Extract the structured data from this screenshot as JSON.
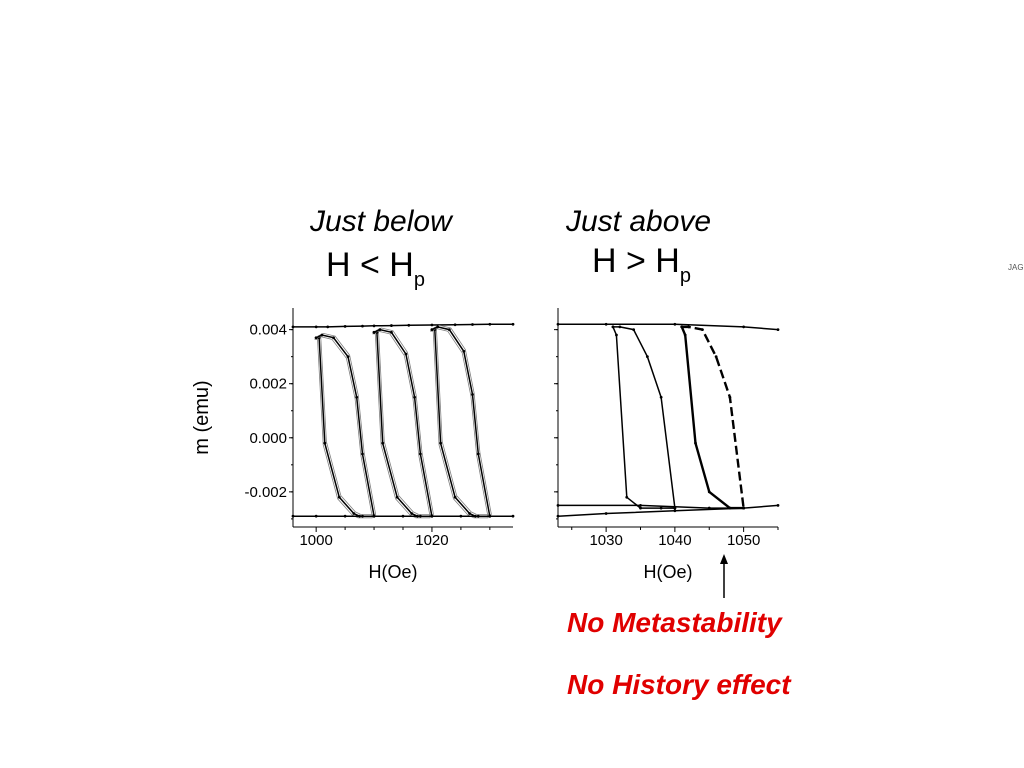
{
  "left": {
    "title": "Just below",
    "condition_base": "H < H",
    "condition_sub": "p"
  },
  "right": {
    "title": "Just above",
    "condition_base": "H > H",
    "condition_sub": "p"
  },
  "annotations": {
    "line1": "No Metastability",
    "line2": "No History effect"
  },
  "side_text": "JAG",
  "colors": {
    "annotation": "#e00000",
    "curve": "#000000",
    "faint": "#808080"
  },
  "chart_data": [
    {
      "type": "line",
      "title": "",
      "xlabel": "H(Oe)",
      "ylabel": "m (emu)",
      "xlim": [
        996,
        1034
      ],
      "ylim": [
        -0.0033,
        0.0048
      ],
      "x_ticks": [
        1000,
        1020
      ],
      "y_ticks": [
        0.004,
        0.002,
        0.0,
        -0.002
      ],
      "y_tick_labels": [
        "0.004",
        "0.002",
        "0.000",
        "-0.002"
      ],
      "series": [
        {
          "x": [
            996,
            1000,
            1002,
            1005,
            1008,
            1010,
            1013,
            1016,
            1020,
            1024,
            1027,
            1030,
            1034
          ],
          "y": [
            0.0041,
            0.0041,
            0.0041,
            0.00412,
            0.00413,
            0.00414,
            0.00415,
            0.00416,
            0.00417,
            0.00418,
            0.00419,
            0.0042,
            0.0042
          ]
        },
        {
          "x": [
            1000,
            1000.5,
            1001.5,
            1004,
            1006.5,
            1007.5,
            1008,
            1010
          ],
          "y": [
            0.0037,
            0.0037,
            -0.0002,
            -0.0022,
            -0.0028,
            -0.0029,
            -0.0029,
            -0.0029
          ]
        },
        {
          "x": [
            1000,
            1001,
            1003,
            1005.5,
            1007,
            1008,
            1010
          ],
          "y": [
            0.0037,
            0.0038,
            0.0037,
            0.003,
            0.0015,
            -0.0006,
            -0.0029
          ]
        },
        {
          "x": [
            1010,
            1010.5,
            1011.5,
            1014,
            1016.5,
            1017.5,
            1018,
            1020
          ],
          "y": [
            0.0039,
            0.0039,
            -0.0002,
            -0.0022,
            -0.0028,
            -0.0029,
            -0.0029,
            -0.0029
          ]
        },
        {
          "x": [
            1010,
            1011,
            1013,
            1015.5,
            1017,
            1018,
            1020
          ],
          "y": [
            0.0039,
            0.004,
            0.0039,
            0.0031,
            0.0015,
            -0.0006,
            -0.0029
          ]
        },
        {
          "x": [
            1020,
            1020.5,
            1021.5,
            1024,
            1026.5,
            1027.5,
            1028,
            1030
          ],
          "y": [
            0.004,
            0.004,
            -0.0002,
            -0.0022,
            -0.0028,
            -0.0029,
            -0.0029,
            -0.0029
          ]
        },
        {
          "x": [
            1020,
            1021,
            1023,
            1025.5,
            1027,
            1028,
            1030
          ],
          "y": [
            0.004,
            0.0041,
            0.004,
            0.0032,
            0.0016,
            -0.0006,
            -0.0029
          ]
        },
        {
          "x": [
            996,
            1000,
            1005,
            1010,
            1015,
            1020,
            1025,
            1030,
            1034
          ],
          "y": [
            -0.0029,
            -0.0029,
            -0.0029,
            -0.0029,
            -0.0029,
            -0.0029,
            -0.0029,
            -0.0029,
            -0.0029
          ]
        }
      ]
    },
    {
      "type": "line",
      "title": "",
      "xlabel": "H(Oe)",
      "ylabel": "",
      "xlim": [
        1023,
        1055
      ],
      "ylim": [
        -0.0033,
        0.0048
      ],
      "x_ticks": [
        1030,
        1040,
        1050
      ],
      "series": [
        {
          "x": [
            1023,
            1030,
            1040,
            1050,
            1055
          ],
          "y": [
            0.0042,
            0.0042,
            0.0042,
            0.0041,
            0.004
          ]
        },
        {
          "x": [
            1031,
            1032,
            1034,
            1036,
            1038,
            1040
          ],
          "y": [
            0.0041,
            0.0041,
            0.004,
            0.003,
            0.0015,
            -0.0026
          ]
        },
        {
          "x": [
            1031,
            1031.5,
            1033,
            1035,
            1038,
            1040
          ],
          "y": [
            0.0041,
            0.0038,
            -0.0022,
            -0.0026,
            -0.0026,
            -0.0026
          ]
        },
        {
          "x": [
            1041,
            1042,
            1044,
            1046,
            1048,
            1050
          ],
          "y": [
            0.0041,
            0.0041,
            0.004,
            0.003,
            0.0015,
            -0.0026
          ]
        },
        {
          "x": [
            1041,
            1041.5,
            1043,
            1045,
            1048,
            1050
          ],
          "y": [
            0.0041,
            0.0038,
            -0.0002,
            -0.002,
            -0.0026,
            -0.0026
          ]
        },
        {
          "x": [
            1023,
            1030,
            1040,
            1050,
            1055
          ],
          "y": [
            -0.0029,
            -0.0028,
            -0.0027,
            -0.0026,
            -0.0025
          ]
        },
        {
          "x": [
            1023,
            1035,
            1045,
            1050
          ],
          "y": [
            -0.0025,
            -0.0025,
            -0.0026,
            -0.0026
          ]
        }
      ]
    }
  ]
}
